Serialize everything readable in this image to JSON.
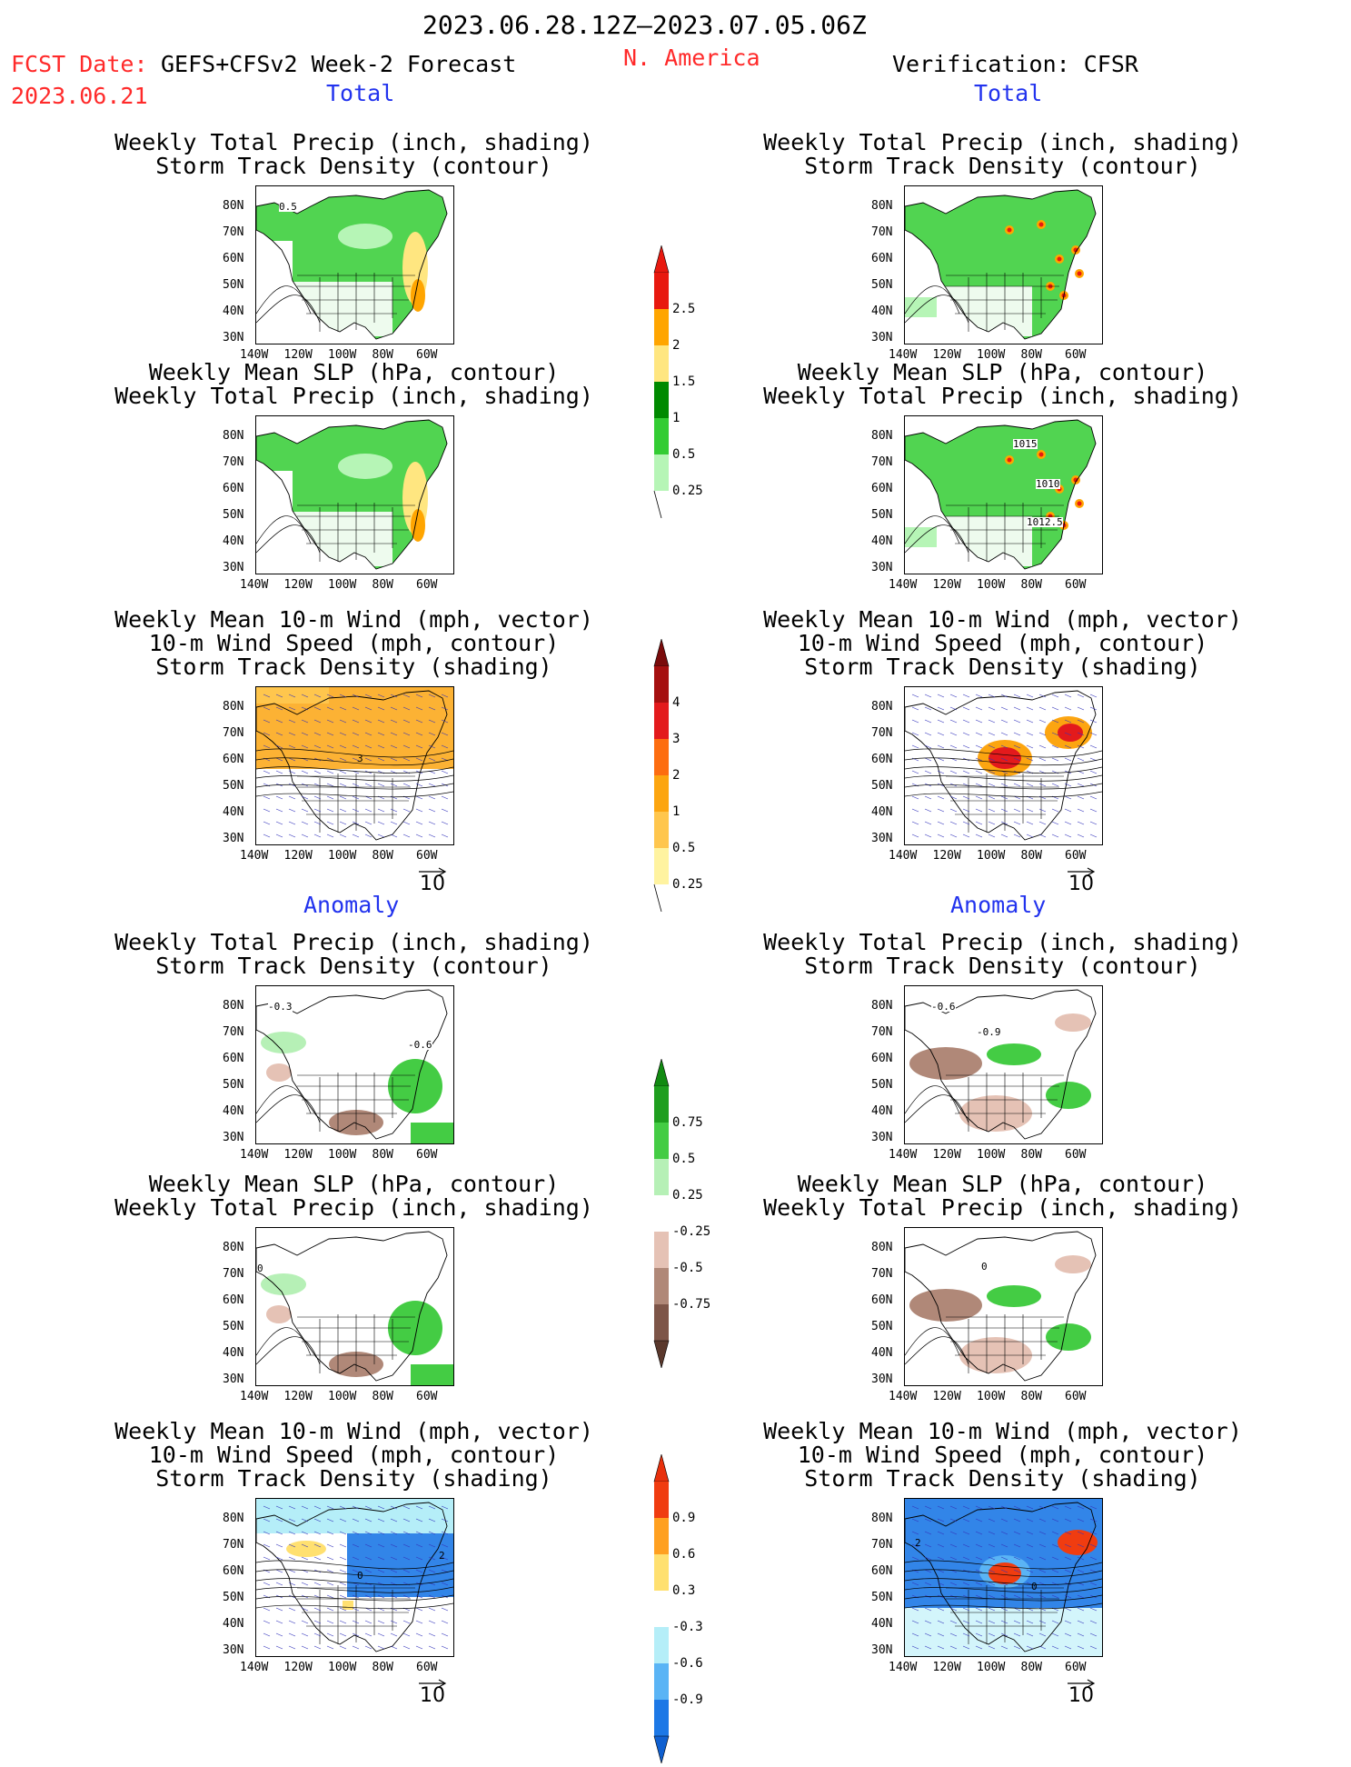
{
  "header": {
    "date_range": "2023.06.28.12Z–2023.07.05.06Z",
    "fcst_date_label": "FCST Date:",
    "fcst_date_value": "2023.06.21",
    "forecast_system": "GEFS+CFSv2 Week-2 Forecast",
    "region": "N. America",
    "verification": "Verification: CFSR"
  },
  "sections": {
    "total": "Total",
    "anomaly": "Anomaly"
  },
  "titles": {
    "precip_track": [
      "Weekly Total Precip (inch, shading)",
      "Storm Track Density (contour)"
    ],
    "slp_precip": [
      "Weekly Mean SLP (hPa, contour)",
      "Weekly Total Precip (inch, shading)"
    ],
    "wind_track": [
      "Weekly Mean 10-m Wind (mph, vector)",
      "10-m Wind Speed (mph, contour)",
      "Storm Track Density (shading)"
    ]
  },
  "axes": {
    "lat_ticks": [
      "80N",
      "70N",
      "60N",
      "50N",
      "40N",
      "30N"
    ],
    "lon_ticks": [
      "140W",
      "120W",
      "100W",
      "80W",
      "60W"
    ]
  },
  "vector_reference": "10",
  "colorbars": {
    "total_precip": {
      "levels": [
        "2.5",
        "2",
        "1.5",
        "1",
        "0.5",
        "0.25"
      ],
      "colors": [
        "#e8190f",
        "#ffa500",
        "#ffe680",
        "#008a00",
        "#33cc33",
        "#b6f5b6"
      ]
    },
    "total_track": {
      "levels": [
        "4",
        "3",
        "2",
        "1",
        "0.5",
        "0.25"
      ],
      "colors": [
        "#a51010",
        "#e31a1c",
        "#fd6d10",
        "#fca510",
        "#ffc64d",
        "#fff3a0"
      ]
    },
    "anom_precip": {
      "levels": [
        "0.75",
        "0.5",
        "0.25",
        "-0.25",
        "-0.5",
        "-0.75"
      ],
      "colors": [
        "#1e9e1e",
        "#44cc44",
        "#b6f0b6",
        "#ffffff",
        "#e5c2b5",
        "#b08878",
        "#7d5548"
      ]
    },
    "anom_track": {
      "levels": [
        "0.9",
        "0.6",
        "0.3",
        "-0.3",
        "-0.6",
        "-0.9"
      ],
      "colors": [
        "#f03c10",
        "#ffa020",
        "#ffe070",
        "#ffffff",
        "#b5eef8",
        "#5ab4f5",
        "#1c78e6"
      ]
    },
    "total_precip_ext_top": "#e8190f",
    "total_track_ext_top": "#7a0b0b",
    "anom_precip_ext_top": "#118a11",
    "anom_precip_ext_bottom": "#5a382c",
    "anom_track_ext_top": "#e8300c",
    "anom_track_ext_bottom": "#1060d0"
  },
  "contour_labels": {
    "fcst_total_track": "0.5",
    "fcst_total_wind": "3",
    "obs_total_slp": [
      "1015",
      "1010",
      "1012.5"
    ],
    "fcst_anom_track": [
      "-0.3",
      "-0.6"
    ],
    "obs_anom_track": [
      "-0.6",
      "-0.9"
    ],
    "anom_zero": "0",
    "anom_wind_two": "2"
  }
}
